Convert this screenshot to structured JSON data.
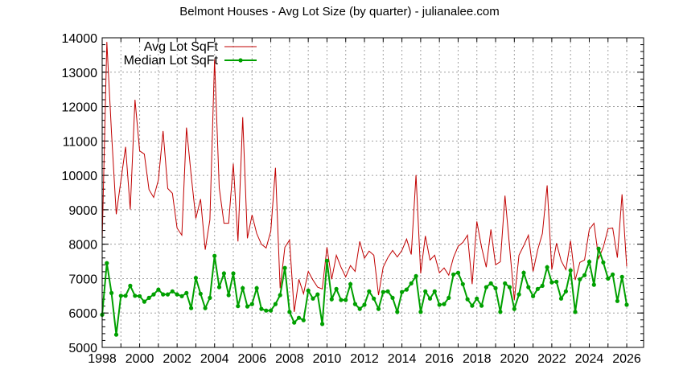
{
  "chart_data": {
    "type": "line",
    "title": "Belmont Houses - Avg Lot Size (by quarter) - julianalee.com",
    "xlabel": "",
    "ylabel": "",
    "xlim": [
      1998,
      2026.9
    ],
    "ylim": [
      5000,
      14000
    ],
    "x_ticks": [
      1998,
      2000,
      2002,
      2004,
      2006,
      2008,
      2010,
      2012,
      2014,
      2016,
      2018,
      2020,
      2022,
      2024,
      2026
    ],
    "y_ticks": [
      5000,
      6000,
      7000,
      8000,
      9000,
      10000,
      11000,
      12000,
      13000,
      14000
    ],
    "grid": true,
    "legend_position": "top-left (inside)",
    "x_start": 1998,
    "x_step": 0.25,
    "series": [
      {
        "name": "Avg Lot SqFt",
        "color": "#c00000",
        "style": "line",
        "values": [
          8100,
          13880,
          11240,
          8870,
          9850,
          10830,
          9010,
          12200,
          10710,
          10620,
          9590,
          9360,
          9870,
          11290,
          9620,
          9480,
          8470,
          8260,
          11390,
          10010,
          8750,
          9310,
          7840,
          8710,
          13370,
          9640,
          8610,
          8610,
          10340,
          8080,
          11690,
          8170,
          8850,
          8310,
          8000,
          7890,
          8380,
          10220,
          6720,
          7910,
          8120,
          6030,
          6980,
          6560,
          7210,
          6960,
          6750,
          6700,
          7910,
          6980,
          7680,
          7330,
          7050,
          7380,
          7210,
          8080,
          7590,
          7800,
          7680,
          6520,
          7330,
          7610,
          7820,
          7630,
          7820,
          8150,
          7700,
          10010,
          7150,
          8240,
          7540,
          7680,
          7170,
          7310,
          7100,
          7610,
          7940,
          8050,
          8260,
          6840,
          8660,
          7910,
          7330,
          8430,
          7400,
          7490,
          9410,
          7900,
          6380,
          7680,
          7960,
          8260,
          7210,
          7840,
          8310,
          9710,
          7260,
          8030,
          7520,
          7260,
          8100,
          6960,
          7470,
          7540,
          8430,
          8610,
          7590,
          7910,
          8450,
          8470,
          7610,
          9450,
          7350
        ]
      },
      {
        "name": "Median Lot SqFt",
        "color": "#00a000",
        "style": "line+points",
        "values": [
          5950,
          7450,
          6580,
          5370,
          6500,
          6500,
          6790,
          6500,
          6490,
          6330,
          6440,
          6540,
          6680,
          6540,
          6540,
          6630,
          6540,
          6490,
          6580,
          6140,
          7020,
          6560,
          6140,
          6440,
          7660,
          6750,
          7150,
          6520,
          7150,
          6200,
          6720,
          6190,
          6260,
          6720,
          6120,
          6070,
          6070,
          6260,
          6520,
          7310,
          6030,
          5720,
          5860,
          5790,
          6650,
          6420,
          6540,
          5680,
          7520,
          6400,
          6700,
          6380,
          6380,
          6840,
          6260,
          6120,
          6240,
          6630,
          6420,
          6120,
          6610,
          6630,
          6440,
          6030,
          6610,
          6680,
          6860,
          7070,
          6030,
          6630,
          6420,
          6630,
          6240,
          6260,
          6440,
          7120,
          7170,
          6840,
          6400,
          6210,
          6420,
          6210,
          6750,
          6860,
          6720,
          6030,
          6860,
          6750,
          6120,
          6540,
          7170,
          6750,
          6490,
          6700,
          6790,
          7330,
          6890,
          6910,
          6420,
          6630,
          7240,
          6030,
          6980,
          7100,
          7490,
          6820,
          7870,
          7470,
          7000,
          7120,
          6350,
          7050,
          6240
        ]
      }
    ]
  },
  "legend": {
    "avg_label": "Avg Lot SqFt",
    "median_label": "Median Lot SqFt"
  }
}
